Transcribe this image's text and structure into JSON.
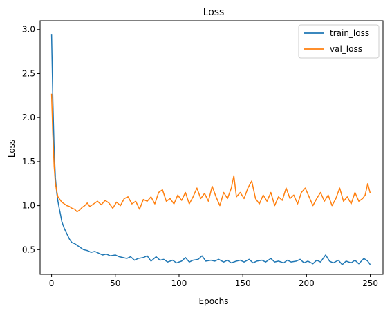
{
  "chart_data": {
    "type": "line",
    "title": "Loss",
    "xlabel": "Epochs",
    "ylabel": "Loss",
    "xlim": [
      -9,
      260
    ],
    "ylim": [
      0.22,
      3.1
    ],
    "xticks": [
      0,
      50,
      100,
      150,
      200,
      250
    ],
    "yticks": [
      0.5,
      1.0,
      1.5,
      2.0,
      2.5,
      3.0
    ],
    "grid": false,
    "legend_position": "top-right",
    "series": [
      {
        "name": "train_loss",
        "color": "#1f77b4",
        "x": [
          0,
          1,
          2,
          3,
          4,
          5,
          6,
          7,
          8,
          9,
          10,
          12,
          14,
          16,
          18,
          20,
          22,
          25,
          28,
          31,
          34,
          37,
          40,
          43,
          46,
          50,
          53,
          56,
          59,
          62,
          65,
          68,
          72,
          75,
          78,
          82,
          85,
          88,
          91,
          95,
          98,
          102,
          105,
          108,
          111,
          115,
          118,
          121,
          125,
          128,
          131,
          135,
          138,
          141,
          145,
          148,
          151,
          155,
          158,
          161,
          165,
          168,
          172,
          175,
          178,
          182,
          185,
          188,
          192,
          195,
          198,
          201,
          205,
          208,
          211,
          215,
          218,
          221,
          225,
          228,
          231,
          235,
          238,
          241,
          245,
          248,
          250
        ],
        "values": [
          2.95,
          2.2,
          1.65,
          1.32,
          1.15,
          1.05,
          0.97,
          0.9,
          0.82,
          0.78,
          0.74,
          0.68,
          0.62,
          0.58,
          0.57,
          0.55,
          0.53,
          0.5,
          0.49,
          0.47,
          0.48,
          0.46,
          0.44,
          0.45,
          0.43,
          0.44,
          0.42,
          0.41,
          0.4,
          0.42,
          0.38,
          0.4,
          0.41,
          0.43,
          0.37,
          0.42,
          0.38,
          0.39,
          0.36,
          0.38,
          0.35,
          0.37,
          0.41,
          0.36,
          0.38,
          0.39,
          0.43,
          0.37,
          0.38,
          0.37,
          0.39,
          0.36,
          0.38,
          0.35,
          0.37,
          0.38,
          0.36,
          0.39,
          0.35,
          0.37,
          0.38,
          0.36,
          0.4,
          0.36,
          0.37,
          0.35,
          0.38,
          0.36,
          0.37,
          0.39,
          0.35,
          0.37,
          0.34,
          0.38,
          0.36,
          0.44,
          0.37,
          0.35,
          0.38,
          0.33,
          0.37,
          0.35,
          0.38,
          0.34,
          0.4,
          0.37,
          0.33
        ]
      },
      {
        "name": "val_loss",
        "color": "#ff7f0e",
        "x": [
          0,
          1,
          2,
          3,
          4,
          5,
          6,
          8,
          10,
          12,
          14,
          16,
          18,
          20,
          22,
          24,
          26,
          28,
          30,
          33,
          36,
          39,
          42,
          45,
          48,
          51,
          54,
          57,
          60,
          63,
          66,
          69,
          72,
          75,
          78,
          81,
          84,
          87,
          90,
          93,
          96,
          99,
          102,
          105,
          108,
          111,
          114,
          117,
          120,
          123,
          126,
          129,
          132,
          135,
          138,
          141,
          143,
          145,
          148,
          151,
          154,
          157,
          160,
          163,
          166,
          169,
          172,
          175,
          178,
          181,
          184,
          187,
          190,
          193,
          196,
          199,
          202,
          205,
          208,
          211,
          214,
          217,
          220,
          223,
          226,
          229,
          232,
          235,
          238,
          241,
          244,
          246,
          248,
          250
        ],
        "values": [
          2.27,
          1.8,
          1.45,
          1.25,
          1.17,
          1.1,
          1.08,
          1.04,
          1.02,
          1.0,
          0.99,
          0.97,
          0.96,
          0.93,
          0.95,
          0.98,
          1.0,
          1.03,
          0.99,
          1.02,
          1.05,
          1.01,
          1.06,
          1.03,
          0.97,
          1.04,
          1.0,
          1.08,
          1.1,
          1.02,
          1.05,
          0.96,
          1.07,
          1.05,
          1.1,
          1.02,
          1.15,
          1.18,
          1.05,
          1.08,
          1.02,
          1.12,
          1.06,
          1.15,
          1.02,
          1.1,
          1.2,
          1.08,
          1.14,
          1.05,
          1.22,
          1.1,
          1.0,
          1.15,
          1.08,
          1.2,
          1.34,
          1.1,
          1.15,
          1.08,
          1.2,
          1.28,
          1.08,
          1.02,
          1.12,
          1.05,
          1.15,
          1.0,
          1.1,
          1.06,
          1.2,
          1.08,
          1.12,
          1.02,
          1.15,
          1.2,
          1.1,
          1.0,
          1.08,
          1.15,
          1.05,
          1.12,
          1.0,
          1.08,
          1.2,
          1.05,
          1.1,
          1.02,
          1.15,
          1.05,
          1.08,
          1.12,
          1.25,
          1.14
        ]
      }
    ]
  }
}
